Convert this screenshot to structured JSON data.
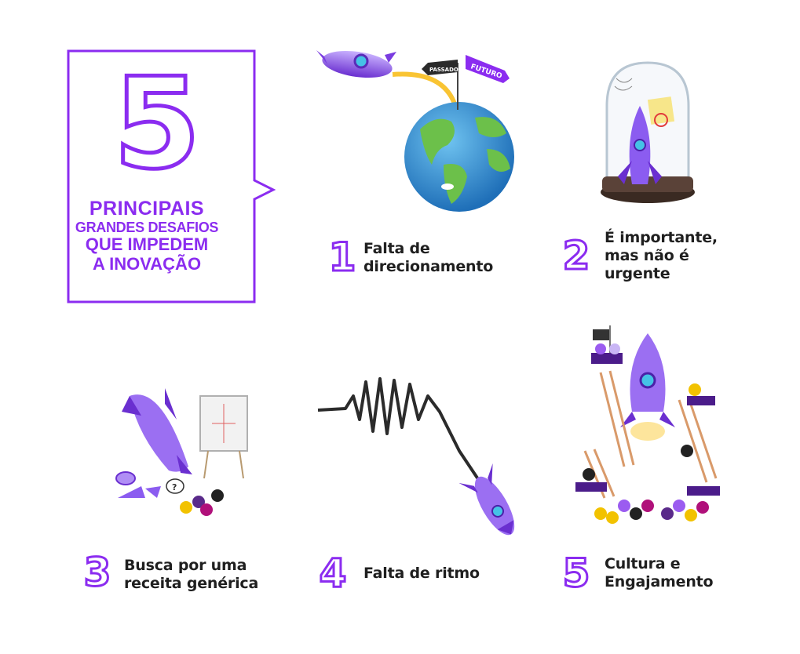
{
  "title": {
    "number": "5",
    "line1": "PRINCIPAIS",
    "line2": "GRANDES DESAFIOS",
    "line3": "QUE IMPEDEM",
    "line4": "A INOVAÇÃO"
  },
  "items": [
    {
      "number": "1",
      "lines": [
        "Falta de",
        "direcionamento"
      ]
    },
    {
      "number": "2",
      "lines": [
        "É importante,",
        "mas não é",
        "urgente"
      ]
    },
    {
      "number": "3",
      "lines": [
        "Busca por uma",
        "receita genérica"
      ]
    },
    {
      "number": "4",
      "lines": [
        "Falta de ritmo"
      ]
    },
    {
      "number": "5",
      "lines": [
        "Cultura e",
        "Engajamento"
      ]
    }
  ],
  "signpost": {
    "past": "PASSADO",
    "future": "FUTURO"
  },
  "flipchart_symbol": "?",
  "colors": {
    "accent": "#8b2cf0",
    "text": "#1f1f1f"
  }
}
